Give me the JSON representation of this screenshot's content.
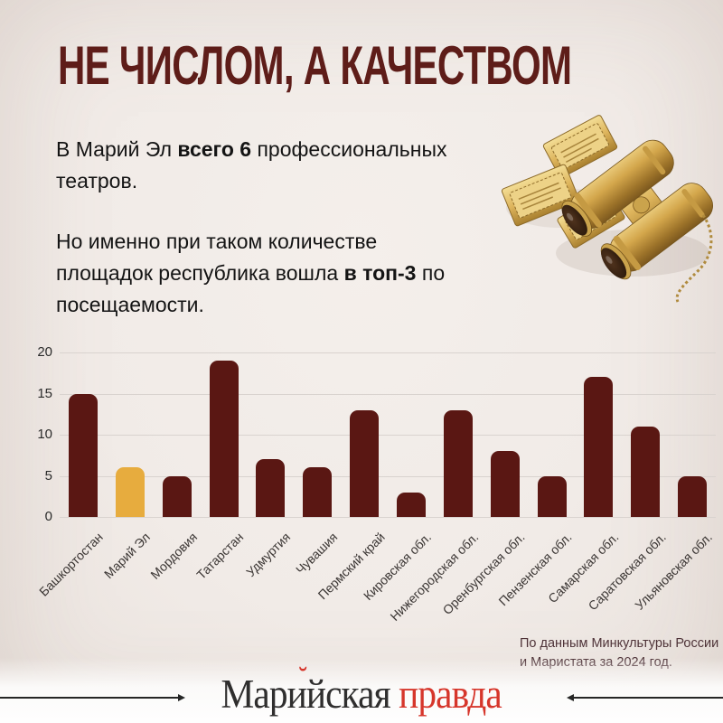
{
  "title": "НЕ ЧИСЛОМ, А КАЧЕСТВОМ",
  "intro": {
    "p1_parts": [
      {
        "text": "В Марий Эл "
      },
      {
        "text": "всего 6",
        "bold": true
      },
      {
        "text": " профессиональных\nтеатров."
      }
    ],
    "p2_parts": [
      {
        "text": "Но именно при таком количестве\nплощадок республика вошла "
      },
      {
        "text": "в топ-3",
        "bold": true
      },
      {
        "text": " по\nпосещаемости."
      }
    ]
  },
  "illustration": {
    "name": "golden-opera-binoculars-and-theater-tickets"
  },
  "chart_data": {
    "type": "bar",
    "title": "",
    "categories": [
      "Башкортостан",
      "Марий Эл",
      "Мордовия",
      "Татарстан",
      "Удмуртия",
      "Чувашия",
      "Пермский край",
      "Кировская обл.",
      "Нижегородская обл.",
      "Оренбургская обл.",
      "Пензенская обл.",
      "Самарская обл.",
      "Саратовская обл.",
      "Ульяновская обл."
    ],
    "values": [
      15,
      6,
      5,
      19,
      7,
      6,
      13,
      3,
      13,
      8,
      5,
      17,
      11,
      5
    ],
    "highlight_category": "Марий Эл",
    "highlight_index": 1,
    "xlabel": "",
    "ylabel": "",
    "ylim": [
      0,
      20
    ],
    "yticks": [
      0,
      5,
      10,
      15,
      20
    ],
    "grid": true,
    "legend": false,
    "bar_color": "#5a1713",
    "highlight_color": "#e7ac3e"
  },
  "source": {
    "line1": "По данным Минкультуры России",
    "line2": "и Маристата за 2024 год."
  },
  "footer": {
    "logo_part1": "Марийская",
    "logo_part2": "правда",
    "logo_accent": "˘"
  },
  "colors": {
    "title": "#5e1d19",
    "bar": "#5a1713",
    "highlight": "#e7ac3e",
    "background": "#f1ebe7",
    "gridline": "#d9d3cf",
    "logo_red": "#d6362b",
    "logo_dark": "#2f2e2e",
    "source_text": "#4e3338"
  }
}
